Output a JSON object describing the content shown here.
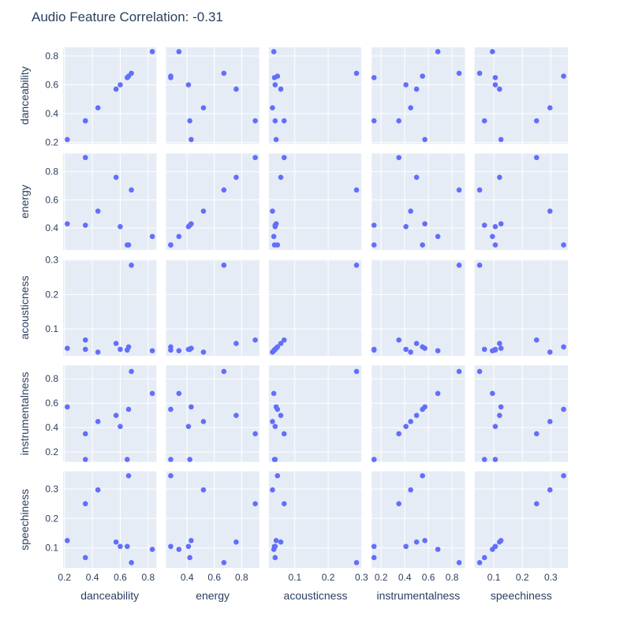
{
  "chart_data": {
    "type": "scatter",
    "title": "Audio Feature Correlation: -0.31",
    "dimensions": [
      "danceability",
      "energy",
      "acousticness",
      "instrumentalness",
      "speechiness"
    ],
    "colors": {
      "plot_bg": "#e5ecf6",
      "grid": "#ffffff",
      "marker": "#636efa",
      "text": "#2a3f5f"
    },
    "axis_ranges": {
      "danceability": [
        0.19,
        0.86
      ],
      "energy": [
        0.245,
        0.93
      ],
      "acousticness": [
        0.022,
        0.302
      ],
      "instrumentalness": [
        0.12,
        0.91
      ],
      "speechiness": [
        0.032,
        0.36
      ]
    },
    "ticks": {
      "danceability": [
        0.2,
        0.4,
        0.6,
        0.8
      ],
      "energy": [
        0.4,
        0.6,
        0.8
      ],
      "acousticness": [
        0.1,
        0.2,
        0.3
      ],
      "instrumentalness": [
        0.2,
        0.4,
        0.6,
        0.8
      ],
      "speechiness": [
        0.1,
        0.2,
        0.3
      ]
    },
    "tick_labels": {
      "danceability": [
        "0.2",
        "0.4",
        "0.6",
        "0.8"
      ],
      "energy": [
        "0.4",
        "0.6",
        "0.8"
      ],
      "acousticness": [
        "0.1",
        "0.2",
        "0.3"
      ],
      "instrumentalness": [
        "0.2",
        "0.4",
        "0.6",
        "0.8"
      ],
      "speechiness": [
        "0.1",
        "0.2",
        "0.3"
      ]
    },
    "points": [
      {
        "danceability": 0.22,
        "energy": 0.43,
        "acousticness": 0.044,
        "instrumentalness": 0.57,
        "speechiness": 0.125
      },
      {
        "danceability": 0.35,
        "energy": 0.9,
        "acousticness": 0.068,
        "instrumentalness": 0.35,
        "speechiness": 0.25
      },
      {
        "danceability": 0.35,
        "energy": 0.42,
        "acousticness": 0.041,
        "instrumentalness": 0.14,
        "speechiness": 0.067
      },
      {
        "danceability": 0.44,
        "energy": 0.52,
        "acousticness": 0.033,
        "instrumentalness": 0.45,
        "speechiness": 0.297
      },
      {
        "danceability": 0.57,
        "energy": 0.76,
        "acousticness": 0.058,
        "instrumentalness": 0.5,
        "speechiness": 0.12
      },
      {
        "danceability": 0.6,
        "energy": 0.41,
        "acousticness": 0.041,
        "instrumentalness": 0.41,
        "speechiness": 0.105
      },
      {
        "danceability": 0.65,
        "energy": 0.28,
        "acousticness": 0.039,
        "instrumentalness": 0.14,
        "speechiness": 0.105
      },
      {
        "danceability": 0.66,
        "energy": 0.28,
        "acousticness": 0.048,
        "instrumentalness": 0.55,
        "speechiness": 0.345
      },
      {
        "danceability": 0.68,
        "energy": 0.67,
        "acousticness": 0.285,
        "instrumentalness": 0.86,
        "speechiness": 0.05
      },
      {
        "danceability": 0.83,
        "energy": 0.34,
        "acousticness": 0.037,
        "instrumentalness": 0.68,
        "speechiness": 0.095
      }
    ]
  }
}
